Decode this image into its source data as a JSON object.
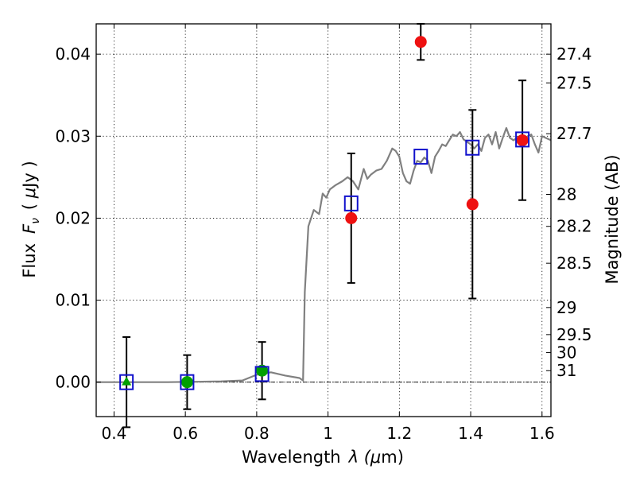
{
  "chart_data": {
    "type": "scatter",
    "xlabel_main": "Wavelength",
    "xlabel_symbol": "λ (",
    "xlabel_mu": "μ",
    "xlabel_unit": "m)",
    "ylabel_main": "Flux",
    "ylabel_symbol_F": "F",
    "ylabel_symbol_sub": "ν",
    "ylabel_unit_open": "( ",
    "ylabel_unit_mu": "μ",
    "ylabel_unit_rest": "Jy )",
    "y2label": "Magnitude (AB)",
    "xlim": [
      0.35,
      1.625
    ],
    "ylim": [
      -0.0042,
      0.0437
    ],
    "xticks": [
      {
        "v": 0.4,
        "label": "0.4"
      },
      {
        "v": 0.6,
        "label": "0.6"
      },
      {
        "v": 0.8,
        "label": "0.8"
      },
      {
        "v": 1.0,
        "label": "1"
      },
      {
        "v": 1.2,
        "label": "1.2"
      },
      {
        "v": 1.4,
        "label": "1.4"
      },
      {
        "v": 1.6,
        "label": "1.6"
      }
    ],
    "yticks": [
      {
        "v": 0.0,
        "label": "0.00"
      },
      {
        "v": 0.01,
        "label": "0.01"
      },
      {
        "v": 0.02,
        "label": "0.02"
      },
      {
        "v": 0.03,
        "label": "0.03"
      },
      {
        "v": 0.04,
        "label": "0.04"
      }
    ],
    "y2ticks": [
      {
        "flux": 0.04,
        "label": "27.4"
      },
      {
        "flux": 0.0365,
        "label": "27.5"
      },
      {
        "flux": 0.0303,
        "label": "27.7"
      },
      {
        "flux": 0.0229,
        "label": "28"
      },
      {
        "flux": 0.019,
        "label": "28.2"
      },
      {
        "flux": 0.0145,
        "label": "28.5"
      },
      {
        "flux": 0.0091,
        "label": "29"
      },
      {
        "flux": 0.0058,
        "label": "29.5"
      },
      {
        "flux": 0.0036,
        "label": "30"
      },
      {
        "flux": 0.0014,
        "label": "31"
      }
    ],
    "template_spectrum": {
      "color": "#808080",
      "points": [
        [
          0.35,
          0.0
        ],
        [
          0.55,
          0.0
        ],
        [
          0.7,
          0.0001
        ],
        [
          0.76,
          0.0002
        ],
        [
          0.8,
          0.0009
        ],
        [
          0.84,
          0.0012
        ],
        [
          0.88,
          0.0008
        ],
        [
          0.92,
          0.0005
        ],
        [
          0.93,
          0.0002
        ],
        [
          0.935,
          0.011
        ],
        [
          0.945,
          0.019
        ],
        [
          0.96,
          0.021
        ],
        [
          0.975,
          0.0205
        ],
        [
          0.985,
          0.023
        ],
        [
          0.995,
          0.0225
        ],
        [
          1.005,
          0.0235
        ],
        [
          1.02,
          0.024
        ],
        [
          1.04,
          0.0245
        ],
        [
          1.055,
          0.025
        ],
        [
          1.07,
          0.0245
        ],
        [
          1.085,
          0.0235
        ],
        [
          1.1,
          0.026
        ],
        [
          1.11,
          0.0248
        ],
        [
          1.12,
          0.0253
        ],
        [
          1.135,
          0.0258
        ],
        [
          1.15,
          0.026
        ],
        [
          1.165,
          0.027
        ],
        [
          1.18,
          0.0285
        ],
        [
          1.19,
          0.0282
        ],
        [
          1.2,
          0.0275
        ],
        [
          1.21,
          0.0255
        ],
        [
          1.22,
          0.0245
        ],
        [
          1.23,
          0.0242
        ],
        [
          1.24,
          0.0258
        ],
        [
          1.25,
          0.027
        ],
        [
          1.26,
          0.0268
        ],
        [
          1.27,
          0.0274
        ],
        [
          1.28,
          0.027
        ],
        [
          1.29,
          0.0255
        ],
        [
          1.3,
          0.0275
        ],
        [
          1.31,
          0.0282
        ],
        [
          1.32,
          0.029
        ],
        [
          1.33,
          0.0288
        ],
        [
          1.34,
          0.0295
        ],
        [
          1.35,
          0.0302
        ],
        [
          1.36,
          0.03
        ],
        [
          1.37,
          0.0305
        ],
        [
          1.38,
          0.0296
        ],
        [
          1.39,
          0.0293
        ],
        [
          1.4,
          0.029
        ],
        [
          1.41,
          0.0285
        ],
        [
          1.42,
          0.029
        ],
        [
          1.43,
          0.0282
        ],
        [
          1.44,
          0.0298
        ],
        [
          1.45,
          0.0302
        ],
        [
          1.46,
          0.029
        ],
        [
          1.47,
          0.0305
        ],
        [
          1.48,
          0.0285
        ],
        [
          1.49,
          0.0298
        ],
        [
          1.5,
          0.031
        ],
        [
          1.51,
          0.0298
        ],
        [
          1.52,
          0.0295
        ],
        [
          1.53,
          0.0298
        ],
        [
          1.54,
          0.03
        ],
        [
          1.55,
          0.0295
        ],
        [
          1.56,
          0.03
        ],
        [
          1.57,
          0.0302
        ],
        [
          1.58,
          0.029
        ],
        [
          1.59,
          0.028
        ],
        [
          1.6,
          0.03
        ],
        [
          1.61,
          0.0298
        ],
        [
          1.625,
          0.0295
        ]
      ]
    },
    "observed_points": [
      {
        "x": 0.435,
        "y": 0.0,
        "err": 0.0055,
        "marker": "triangle",
        "color": "#00a000"
      },
      {
        "x": 0.605,
        "y": 0.0,
        "err": 0.0033,
        "marker": "circle",
        "color": "#00a000"
      },
      {
        "x": 0.815,
        "y": 0.0014,
        "err": 0.0035,
        "marker": "circle",
        "color": "#00a000"
      },
      {
        "x": 1.065,
        "y": 0.02,
        "err": 0.0079,
        "marker": "circle",
        "color": "#ee1111"
      },
      {
        "x": 1.26,
        "y": 0.0415,
        "err": 0.0022,
        "marker": "circle",
        "color": "#ee1111"
      },
      {
        "x": 1.405,
        "y": 0.0217,
        "err": 0.0115,
        "marker": "circle",
        "color": "#ee1111"
      },
      {
        "x": 1.545,
        "y": 0.0295,
        "err": 0.0073,
        "marker": "circle",
        "color": "#ee1111"
      }
    ],
    "model_points": [
      {
        "x": 0.435,
        "y": 0.0
      },
      {
        "x": 0.605,
        "y": 0.0
      },
      {
        "x": 0.815,
        "y": 0.001
      },
      {
        "x": 1.065,
        "y": 0.0218
      },
      {
        "x": 1.26,
        "y": 0.0275
      },
      {
        "x": 1.405,
        "y": 0.0286
      },
      {
        "x": 1.545,
        "y": 0.0296
      }
    ],
    "model_color": "#1111cc",
    "grid": true,
    "zero_line": true
  }
}
